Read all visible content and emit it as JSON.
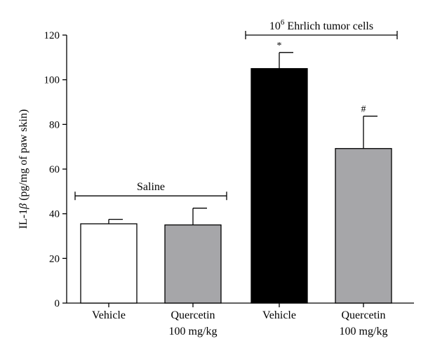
{
  "chart_data": {
    "type": "bar",
    "ylabel_prefix": "IL-1",
    "ylabel_beta": "β",
    "ylabel_suffix": " (pg/mg of paw skin)",
    "ylim": [
      0,
      120
    ],
    "yticks": [
      "0",
      "20",
      "40",
      "60",
      "80",
      "100",
      "120"
    ],
    "ytick_values": [
      0,
      20,
      40,
      60,
      80,
      100,
      120
    ],
    "grid": false,
    "bars": [
      {
        "label_line1": "Vehicle",
        "label_line2": "",
        "value": 35.5,
        "error": 2,
        "color": "#ffffff",
        "sig": ""
      },
      {
        "label_line1": "Quercetin",
        "label_line2": "100 mg/kg",
        "value": 35,
        "error": 7.5,
        "color": "#a6a6a9",
        "sig": ""
      },
      {
        "label_line1": "Vehicle",
        "label_line2": "",
        "value": 105,
        "error": 7.2,
        "color": "#000000",
        "sig": "*"
      },
      {
        "label_line1": "Quercetin",
        "label_line2": "100 mg/kg",
        "value": 69.2,
        "error": 14.5,
        "color": "#a6a6a9",
        "sig": "#"
      }
    ],
    "groups": [
      {
        "label": "Saline",
        "bars": [
          0,
          1
        ],
        "at_value": 48
      },
      {
        "label_base": "10",
        "label_exp": "6",
        "label_rest": " Ehrlich tumor cells",
        "bars": [
          2,
          3
        ],
        "at_value": 120
      }
    ]
  }
}
